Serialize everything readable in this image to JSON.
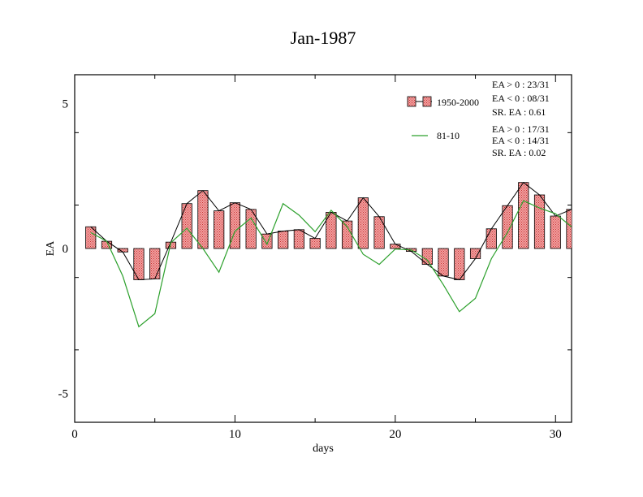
{
  "chart_data": {
    "type": "bar",
    "title": "Jan-1987",
    "xlabel": "days",
    "ylabel": "EA",
    "xlim": [
      0,
      31
    ],
    "ylim": [
      -6,
      6
    ],
    "x_ticks": [
      0,
      10,
      20,
      30
    ],
    "y_ticks": [
      5,
      0,
      -5
    ],
    "x_tick_labels": [
      "0",
      "10",
      "20",
      "30"
    ],
    "y_tick_labels": [
      "5",
      "0",
      "-5"
    ],
    "grid": false,
    "legend_position": "top-right",
    "days": [
      1,
      2,
      3,
      4,
      5,
      6,
      7,
      8,
      9,
      10,
      11,
      12,
      13,
      14,
      15,
      16,
      17,
      18,
      19,
      20,
      21,
      22,
      23,
      24,
      25,
      26,
      27,
      28,
      29,
      30,
      31
    ],
    "series": [
      {
        "name": "1950-2000",
        "style": "bar+line",
        "bar_color": "#e87878",
        "line_color": "#000000",
        "values": [
          0.75,
          0.25,
          -0.12,
          -1.08,
          -1.05,
          0.22,
          1.55,
          2.0,
          1.3,
          1.58,
          1.35,
          0.5,
          0.6,
          0.65,
          0.35,
          1.25,
          0.95,
          1.75,
          1.1,
          0.15,
          -0.1,
          -0.55,
          -0.95,
          -1.08,
          -0.35,
          0.68,
          1.48,
          2.28,
          1.85,
          1.12,
          1.35
        ]
      },
      {
        "name": "81-10",
        "style": "line",
        "line_color": "#2ca02c",
        "values": [
          0.55,
          0.25,
          -0.95,
          -2.7,
          -2.25,
          0.2,
          0.7,
          0.0,
          -0.82,
          0.6,
          1.05,
          0.15,
          1.55,
          1.15,
          0.58,
          1.32,
          0.75,
          -0.2,
          -0.55,
          -0.02,
          -0.05,
          -0.4,
          -1.25,
          -2.18,
          -1.72,
          -0.35,
          0.55,
          1.65,
          1.4,
          1.2,
          0.75
        ]
      }
    ],
    "legend": [
      {
        "label": "1950-2000",
        "stats": [
          "EA > 0 : 23/31",
          "EA < 0 : 08/31",
          "SR. EA :  0.61"
        ]
      },
      {
        "label": "81-10",
        "stats": [
          "EA > 0 : 17/31",
          "EA < 0 : 14/31",
          "SR. EA :  0.02"
        ]
      }
    ]
  }
}
